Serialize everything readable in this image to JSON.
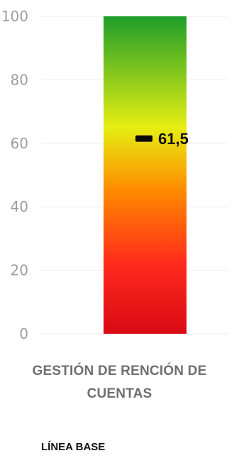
{
  "chart_data": {
    "type": "bar",
    "categories": [
      "GESTIÓN DE RENCIÓN DE CUENTAS"
    ],
    "category_lines": [
      "GESTIÓN DE RENCIÓN DE",
      "CUENTAS"
    ],
    "values": [
      100
    ],
    "marker": {
      "value": 61.5,
      "label": "61,5"
    },
    "ylim": [
      0,
      100
    ],
    "yticks": [
      0,
      20,
      40,
      60,
      80,
      100
    ],
    "title": "",
    "xlabel": "",
    "ylabel": "",
    "grid": true,
    "gradient_colors": {
      "top": "#1e9e2a",
      "upper": "#e6ee12",
      "middle": "#ff8a00",
      "lower": "#ff2a1c",
      "bottom": "#d80a14"
    },
    "tick_color": "#9e9e9e",
    "grid_color": "#eeeeee"
  },
  "footer": {
    "label": "LÍNEA BASE"
  }
}
